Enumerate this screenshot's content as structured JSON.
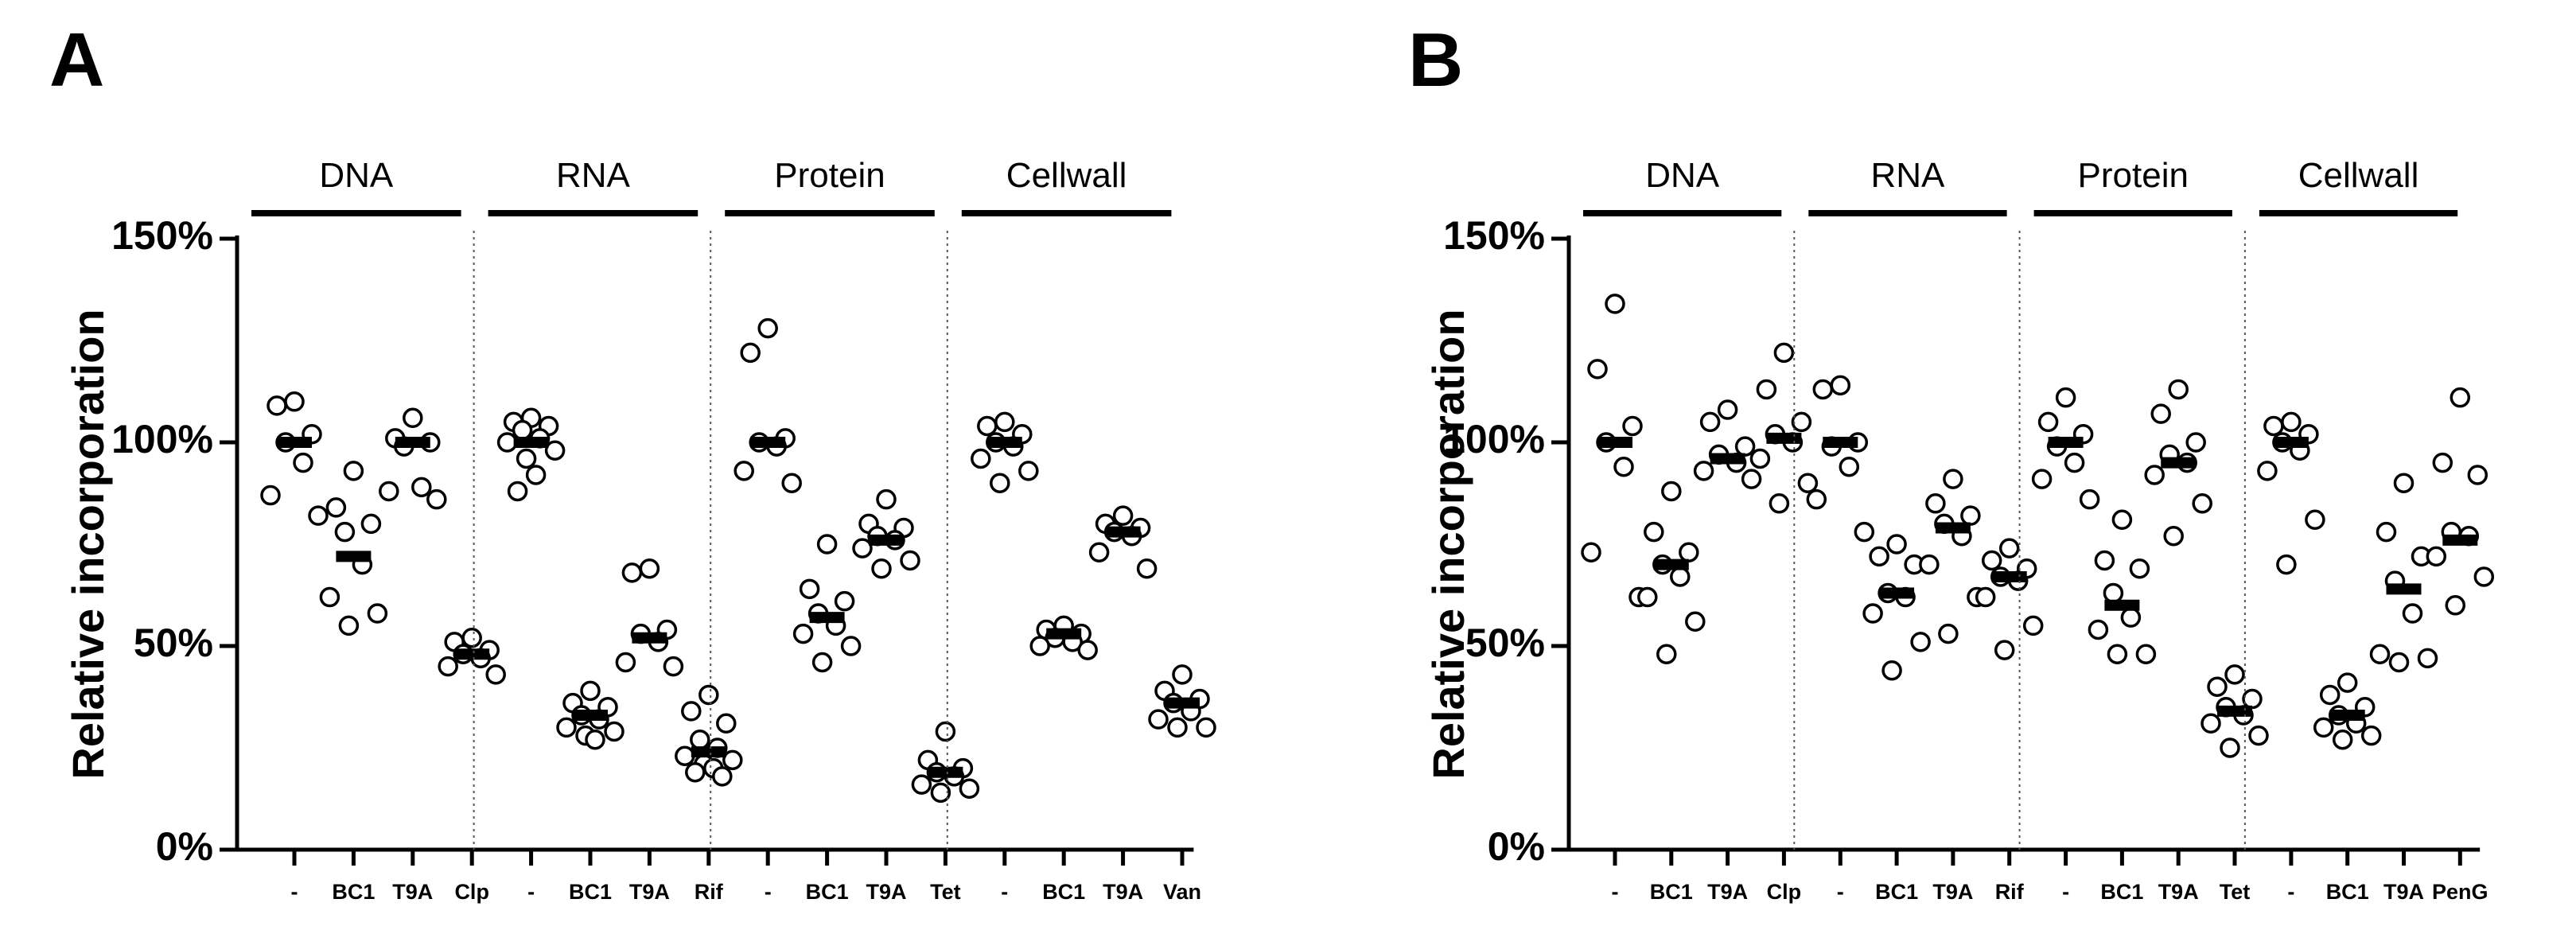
{
  "chart_data": [
    {
      "type": "scatter",
      "panel": "A",
      "ylabel": "Relative incorporation",
      "ylim": [
        0,
        150
      ],
      "yticks": [
        "0%",
        "50%",
        "100%",
        "150%"
      ],
      "ytick_values": [
        0,
        50,
        100,
        150
      ],
      "groups": [
        {
          "name": "DNA",
          "categories": [
            {
              "label": "-",
              "median": 100,
              "points": [
                110,
                109,
                102,
                100,
                95,
                87,
                82
              ]
            },
            {
              "label": "BC1",
              "median": 72,
              "points": [
                93,
                84,
                80,
                78,
                70,
                62,
                58,
                55
              ]
            },
            {
              "label": "T9A",
              "median": 100,
              "points": [
                106,
                101,
                100,
                99,
                89,
                88,
                86
              ]
            },
            {
              "label": "Clp",
              "median": 48,
              "points": [
                52,
                51,
                49,
                48,
                47,
                45,
                43
              ]
            }
          ]
        },
        {
          "name": "RNA",
          "categories": [
            {
              "label": "-",
              "median": 100,
              "points": [
                106,
                105,
                104,
                103,
                101,
                100,
                98,
                96,
                92,
                88
              ]
            },
            {
              "label": "BC1",
              "median": 33,
              "points": [
                39,
                36,
                35,
                33,
                32,
                30,
                29,
                28,
                27
              ]
            },
            {
              "label": "T9A",
              "median": 52,
              "points": [
                69,
                68,
                54,
                53,
                51,
                46,
                45
              ]
            },
            {
              "label": "Rif",
              "median": 24,
              "points": [
                38,
                34,
                31,
                27,
                25,
                23,
                22,
                21,
                20,
                19,
                18
              ]
            }
          ]
        },
        {
          "name": "Protein",
          "categories": [
            {
              "label": "-",
              "median": 100,
              "points": [
                128,
                122,
                101,
                100,
                99,
                93,
                90
              ]
            },
            {
              "label": "BC1",
              "median": 57,
              "points": [
                75,
                64,
                61,
                58,
                55,
                53,
                50,
                46
              ]
            },
            {
              "label": "T9A",
              "median": 76,
              "points": [
                86,
                80,
                79,
                77,
                76,
                74,
                71,
                69
              ]
            },
            {
              "label": "Tet",
              "median": 19,
              "points": [
                29,
                22,
                20,
                19,
                18,
                16,
                15,
                14
              ]
            }
          ]
        },
        {
          "name": "Cellwall",
          "categories": [
            {
              "label": "-",
              "median": 100,
              "points": [
                105,
                104,
                102,
                100,
                99,
                96,
                93,
                90
              ]
            },
            {
              "label": "BC1",
              "median": 53,
              "points": [
                55,
                54,
                53,
                52,
                51,
                50,
                49
              ]
            },
            {
              "label": "T9A",
              "median": 78,
              "points": [
                82,
                80,
                79,
                78,
                77,
                73,
                69
              ]
            },
            {
              "label": "Van",
              "median": 36,
              "points": [
                43,
                39,
                37,
                36,
                34,
                32,
                30,
                30
              ]
            }
          ]
        }
      ]
    },
    {
      "type": "scatter",
      "panel": "B",
      "ylabel": "Relative incorporation",
      "ylim": [
        0,
        150
      ],
      "yticks": [
        "0%",
        "50%",
        "100%",
        "150%"
      ],
      "ytick_values": [
        0,
        50,
        100,
        150
      ],
      "groups": [
        {
          "name": "DNA",
          "categories": [
            {
              "label": "-",
              "median": 100,
              "points": [
                134,
                118,
                104,
                100,
                94,
                73,
                62
              ]
            },
            {
              "label": "BC1",
              "median": 70,
              "points": [
                88,
                78,
                73,
                70,
                67,
                62,
                56,
                48
              ]
            },
            {
              "label": "T9A",
              "median": 96,
              "points": [
                108,
                105,
                99,
                97,
                95,
                93,
                91
              ]
            },
            {
              "label": "Clp",
              "median": 101,
              "points": [
                122,
                113,
                105,
                102,
                100,
                96,
                90,
                85
              ]
            }
          ]
        },
        {
          "name": "RNA",
          "categories": [
            {
              "label": "-",
              "median": 100,
              "points": [
                114,
                113,
                100,
                99,
                94,
                86,
                78
              ]
            },
            {
              "label": "BC1",
              "median": 63,
              "points": [
                75,
                72,
                70,
                63,
                62,
                58,
                51,
                44
              ]
            },
            {
              "label": "T9A",
              "median": 79,
              "points": [
                91,
                85,
                82,
                80,
                77,
                70,
                62,
                53
              ]
            },
            {
              "label": "Rif",
              "median": 67,
              "points": [
                74,
                71,
                69,
                67,
                66,
                62,
                55,
                49
              ]
            }
          ]
        },
        {
          "name": "Protein",
          "categories": [
            {
              "label": "-",
              "median": 100,
              "points": [
                111,
                105,
                102,
                99,
                95,
                91,
                86
              ]
            },
            {
              "label": "BC1",
              "median": 60,
              "points": [
                81,
                71,
                69,
                63,
                57,
                54,
                48,
                48
              ]
            },
            {
              "label": "T9A",
              "median": 95,
              "points": [
                113,
                107,
                100,
                97,
                95,
                92,
                85,
                77
              ]
            },
            {
              "label": "Tet",
              "median": 34,
              "points": [
                43,
                40,
                37,
                35,
                33,
                31,
                28,
                25
              ]
            }
          ]
        },
        {
          "name": "Cellwall",
          "categories": [
            {
              "label": "-",
              "median": 100,
              "points": [
                105,
                104,
                102,
                100,
                98,
                93,
                81,
                70
              ]
            },
            {
              "label": "BC1",
              "median": 33,
              "points": [
                41,
                38,
                35,
                33,
                31,
                30,
                28,
                27
              ]
            },
            {
              "label": "T9A",
              "median": 64,
              "points": [
                90,
                78,
                72,
                66,
                58,
                48,
                47,
                46
              ]
            },
            {
              "label": "PenG",
              "median": 76,
              "points": [
                111,
                95,
                92,
                78,
                77,
                72,
                67,
                60
              ]
            }
          ]
        }
      ]
    }
  ]
}
